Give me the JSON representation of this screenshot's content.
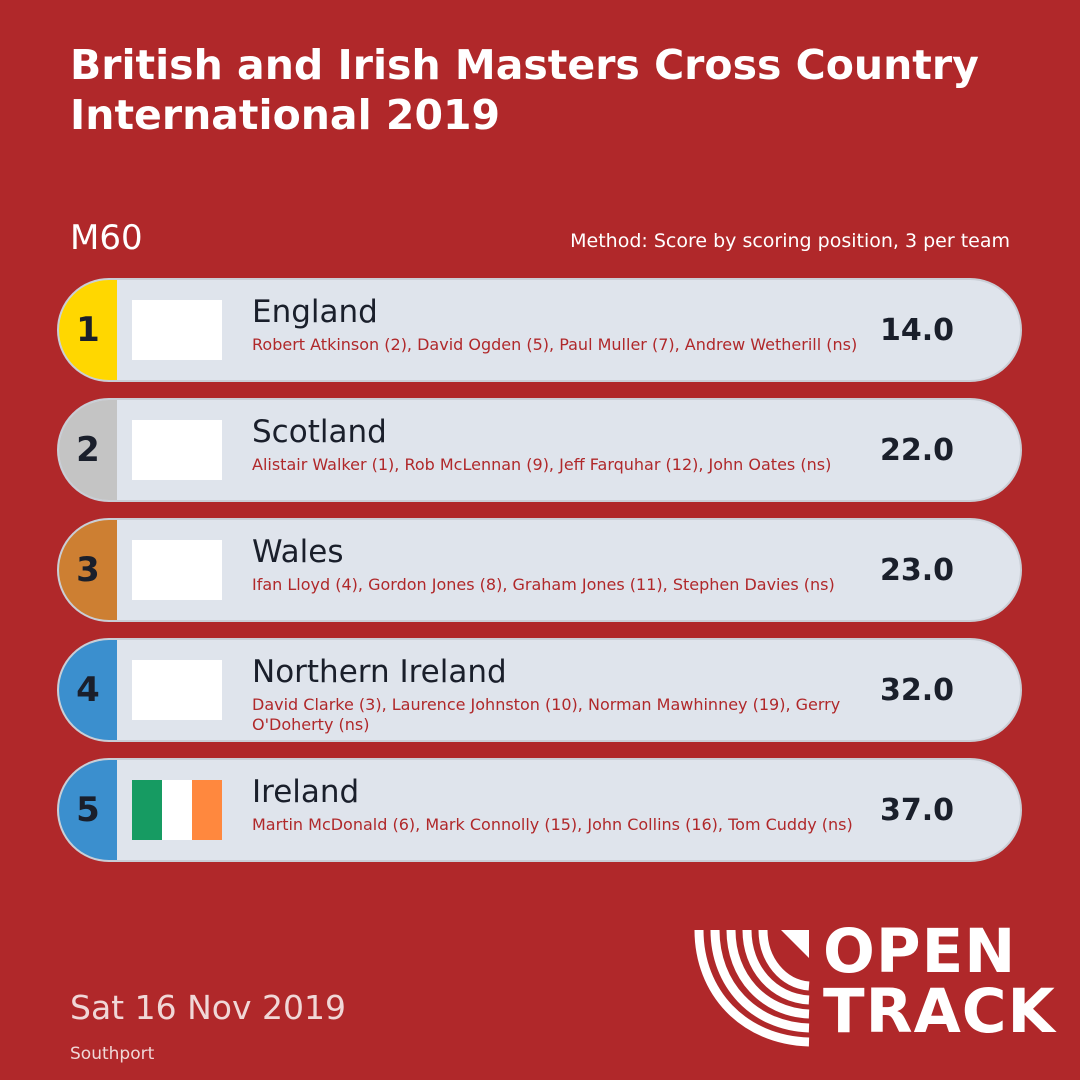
{
  "header": {
    "title": "British and Irish Masters Cross Country International 2019",
    "category": "M60",
    "method": "Method: Score by scoring position, 3 per team"
  },
  "results": [
    {
      "rank": "1",
      "team": "England",
      "athletes": "Robert Atkinson (2), David Ogden (5), Paul Muller (7), Andrew Wetherill (ns)",
      "score": "14.0",
      "rank_color": "#ffd700",
      "flag": []
    },
    {
      "rank": "2",
      "team": "Scotland",
      "athletes": "Alistair Walker (1), Rob McLennan (9), Jeff Farquhar (12), John Oates (ns)",
      "score": "22.0",
      "rank_color": "#c4c4c4",
      "flag": []
    },
    {
      "rank": "3",
      "team": "Wales",
      "athletes": "Ifan Lloyd (4), Gordon Jones (8), Graham Jones (11), Stephen Davies (ns)",
      "score": "23.0",
      "rank_color": "#cd7f32",
      "flag": []
    },
    {
      "rank": "4",
      "team": "Northern Ireland",
      "athletes": "David Clarke (3), Laurence Johnston (10), Norman Mawhinney (19), Gerry O'Doherty (ns)",
      "score": "32.0",
      "rank_color": "#3b8fce",
      "flag": []
    },
    {
      "rank": "5",
      "team": "Ireland",
      "athletes": "Martin McDonald (6), Mark Connolly (15), John Collins (16), Tom Cuddy (ns)",
      "score": "37.0",
      "rank_color": "#3b8fce",
      "flag": [
        "#169b62",
        "#ffffff",
        "#ff883e"
      ]
    }
  ],
  "footer": {
    "date": "Sat 16 Nov 2019",
    "venue": "Southport"
  },
  "logo": {
    "line1": "OPEN",
    "line2": "TRACK",
    "icon": "opentrack-arcs-icon"
  },
  "colors": {
    "background": "#b0282a",
    "row_background": "#dfe4ec",
    "athletes_text": "#b0282a"
  }
}
